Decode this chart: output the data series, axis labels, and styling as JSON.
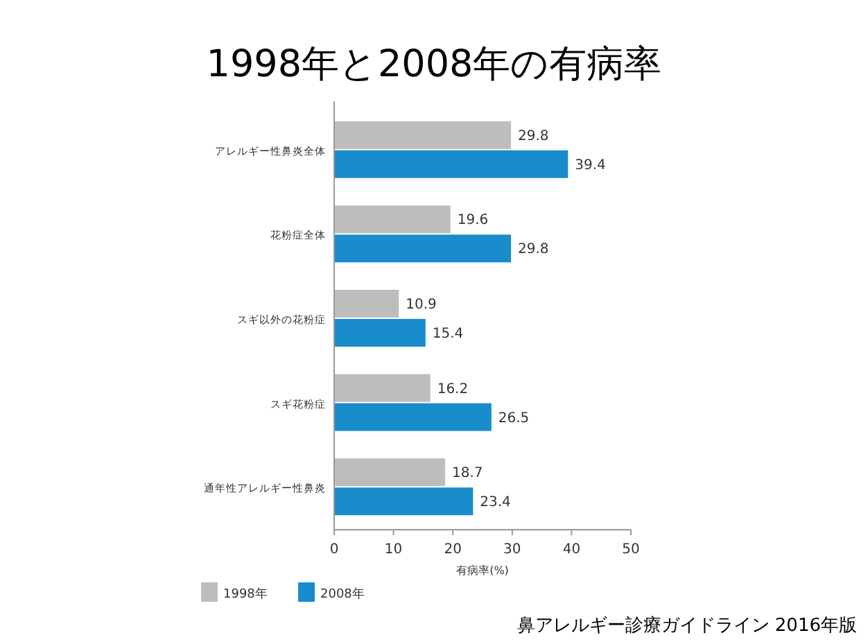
{
  "chart_data": {
    "type": "bar",
    "orientation": "horizontal",
    "title": "1998年と2008年の有病率",
    "categories": [
      "アレルギー性鼻炎全体",
      "花粉症全体",
      "スギ以外の花粉症",
      "スギ花粉症",
      "通年性アレルギー性鼻炎"
    ],
    "series": [
      {
        "name": "1998年",
        "color": "#bdbdbd",
        "values": [
          29.8,
          19.6,
          10.9,
          16.2,
          18.7
        ]
      },
      {
        "name": "2008年",
        "color": "#1a8ccc",
        "values": [
          39.4,
          29.8,
          15.4,
          26.5,
          23.4
        ]
      }
    ],
    "xlim": [
      0,
      50
    ],
    "xticks": [
      0,
      10,
      20,
      30,
      40,
      50
    ],
    "xlabel": "有病率(%)",
    "data_labels": true,
    "legend": "bottom left",
    "grid": false,
    "annotations": [
      "鼻アレルギー診療ガイドライン  2016年版"
    ]
  }
}
